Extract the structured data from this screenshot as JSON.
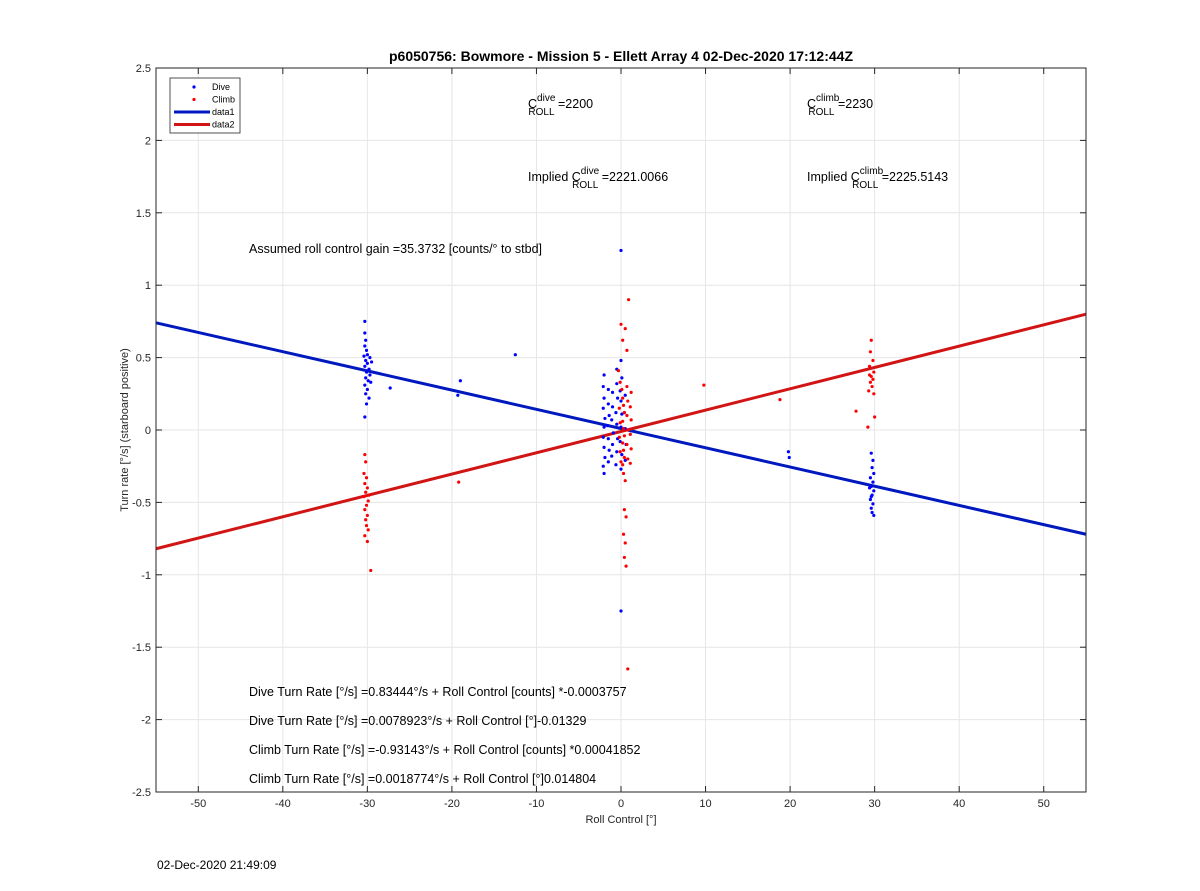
{
  "footer": {
    "timestamp": "02-Dec-2020 21:49:09"
  },
  "chart_data": {
    "type": "scatter",
    "title": "p6050756: Bowmore - Mission 5 - Ellett Array 4 02-Dec-2020 17:12:44Z",
    "xlabel": "Roll Control [°]",
    "ylabel": "Turn rate [°/s] (starboard positive)",
    "xlim": [
      -55,
      55
    ],
    "ylim": [
      -2.5,
      2.5
    ],
    "xticks": [
      -50,
      -40,
      -30,
      -20,
      -10,
      0,
      10,
      20,
      30,
      40,
      50
    ],
    "yticks": [
      -2.5,
      -2,
      -1.5,
      -1,
      -0.5,
      0,
      0.5,
      1,
      1.5,
      2,
      2.5
    ],
    "xtick_labels": [
      "-50",
      "-40",
      "-30",
      "-20",
      "-10",
      "0",
      "10",
      "20",
      "30",
      "40",
      "50"
    ],
    "ytick_labels": [
      "-2.5",
      "-2",
      "-1.5",
      "-1",
      "-0.5",
      "0",
      "0.5",
      "1",
      "1.5",
      "2",
      "2.5"
    ],
    "grid": true,
    "legend_position": "top-left",
    "colors": {
      "dive": "#0000ff",
      "climb": "#ff0000",
      "data1": "#0019bf",
      "data2": "#d11414"
    },
    "legend": [
      {
        "label": "Dive",
        "kind": "marker",
        "color": "#0000ff"
      },
      {
        "label": "Climb",
        "kind": "marker",
        "color": "#ff0000"
      },
      {
        "label": "data1",
        "kind": "line",
        "color": "#0019bf"
      },
      {
        "label": "data2",
        "kind": "line",
        "color": "#d11414"
      }
    ],
    "lines": [
      {
        "name": "data1",
        "color": "#0019bf",
        "x": [
          -55,
          55
        ],
        "y": [
          0.74,
          -0.72
        ]
      },
      {
        "name": "data2",
        "color": "#d11414",
        "x": [
          -55,
          55
        ],
        "y": [
          -0.82,
          0.8
        ]
      }
    ],
    "series": [
      {
        "name": "Dive",
        "color": "#0000ff",
        "points": [
          [
            -30.3,
            0.75
          ],
          [
            -30.3,
            0.67
          ],
          [
            -30.2,
            0.62
          ],
          [
            -30.3,
            0.58
          ],
          [
            -30.1,
            0.55
          ],
          [
            -30.4,
            0.51
          ],
          [
            -30.2,
            0.48
          ],
          [
            -30.0,
            0.46
          ],
          [
            -30.3,
            0.44
          ],
          [
            -29.8,
            0.42
          ],
          [
            -30.1,
            0.4
          ],
          [
            -29.7,
            0.38
          ],
          [
            -30.2,
            0.36
          ],
          [
            -29.9,
            0.34
          ],
          [
            -30.3,
            0.31
          ],
          [
            -29.6,
            0.33
          ],
          [
            -30.0,
            0.28
          ],
          [
            -30.2,
            0.25
          ],
          [
            -29.8,
            0.22
          ],
          [
            -30.1,
            0.18
          ],
          [
            -30.3,
            0.09
          ],
          [
            -29.5,
            0.47
          ],
          [
            -29.7,
            0.5
          ],
          [
            -30.0,
            0.52
          ],
          [
            -27.3,
            0.29
          ],
          [
            -19.0,
            0.34
          ],
          [
            -19.3,
            0.24
          ],
          [
            -12.5,
            0.52
          ],
          [
            0.0,
            1.24
          ],
          [
            0.0,
            -1.25
          ],
          [
            -2.0,
            0.38
          ],
          [
            -2.1,
            0.3
          ],
          [
            -2.0,
            0.22
          ],
          [
            -2.1,
            0.15
          ],
          [
            -1.9,
            0.08
          ],
          [
            -2.0,
            0.02
          ],
          [
            -2.1,
            -0.05
          ],
          [
            -2.0,
            -0.12
          ],
          [
            -1.9,
            -0.19
          ],
          [
            -2.1,
            -0.25
          ],
          [
            -2.0,
            -0.3
          ],
          [
            -1.5,
            0.28
          ],
          [
            -1.5,
            0.18
          ],
          [
            -1.4,
            0.1
          ],
          [
            -1.6,
            0.03
          ],
          [
            -1.5,
            -0.06
          ],
          [
            -1.4,
            -0.14
          ],
          [
            -1.5,
            -0.22
          ],
          [
            -1.0,
            0.26
          ],
          [
            -1.0,
            0.16
          ],
          [
            -1.1,
            0.07
          ],
          [
            -0.9,
            -0.02
          ],
          [
            -1.0,
            -0.1
          ],
          [
            -1.1,
            -0.18
          ],
          [
            -0.5,
            0.42
          ],
          [
            -0.5,
            0.32
          ],
          [
            -0.4,
            0.22
          ],
          [
            -0.6,
            0.12
          ],
          [
            -0.5,
            0.04
          ],
          [
            -0.4,
            -0.06
          ],
          [
            -0.5,
            -0.15
          ],
          [
            -0.6,
            -0.24
          ],
          [
            0.0,
            0.48
          ],
          [
            0.1,
            0.36
          ],
          [
            -0.1,
            0.27
          ],
          [
            0.0,
            0.2
          ],
          [
            0.1,
            0.11
          ],
          [
            0.0,
            0.02
          ],
          [
            -0.1,
            -0.08
          ],
          [
            0.1,
            -0.17
          ],
          [
            0.0,
            -0.27
          ],
          [
            0.5,
            0.24
          ],
          [
            0.4,
            0.12
          ],
          [
            0.5,
            0.01
          ],
          [
            0.6,
            -0.1
          ],
          [
            0.5,
            -0.21
          ],
          [
            19.8,
            -0.15
          ],
          [
            19.9,
            -0.19
          ],
          [
            29.6,
            -0.16
          ],
          [
            29.8,
            -0.21
          ],
          [
            29.7,
            -0.26
          ],
          [
            29.9,
            -0.3
          ],
          [
            29.5,
            -0.33
          ],
          [
            29.8,
            -0.36
          ],
          [
            29.6,
            -0.39
          ],
          [
            29.9,
            -0.42
          ],
          [
            29.7,
            -0.45
          ],
          [
            29.5,
            -0.48
          ],
          [
            29.8,
            -0.51
          ],
          [
            29.6,
            -0.54
          ],
          [
            29.7,
            -0.57
          ],
          [
            29.9,
            -0.59
          ],
          [
            29.4,
            -0.4
          ],
          [
            29.6,
            -0.46
          ]
        ]
      },
      {
        "name": "Climb",
        "color": "#ff0000",
        "points": [
          [
            -30.3,
            -0.17
          ],
          [
            -30.2,
            -0.22
          ],
          [
            -30.4,
            -0.3
          ],
          [
            -30.1,
            -0.33
          ],
          [
            -30.3,
            -0.37
          ],
          [
            -30.0,
            -0.4
          ],
          [
            -30.2,
            -0.43
          ],
          [
            -30.4,
            -0.46
          ],
          [
            -29.9,
            -0.49
          ],
          [
            -30.1,
            -0.52
          ],
          [
            -30.3,
            -0.55
          ],
          [
            -30.0,
            -0.59
          ],
          [
            -30.2,
            -0.62
          ],
          [
            -30.1,
            -0.66
          ],
          [
            -29.9,
            -0.69
          ],
          [
            -30.3,
            -0.73
          ],
          [
            -30.0,
            -0.77
          ],
          [
            -29.6,
            -0.97
          ],
          [
            -29.8,
            -0.45
          ],
          [
            -19.2,
            -0.36
          ],
          [
            0.9,
            0.9
          ],
          [
            0.0,
            0.73
          ],
          [
            0.5,
            0.7
          ],
          [
            0.2,
            0.62
          ],
          [
            0.7,
            0.55
          ],
          [
            0.4,
            -0.55
          ],
          [
            0.6,
            -0.6
          ],
          [
            0.3,
            -0.72
          ],
          [
            0.5,
            -0.78
          ],
          [
            0.4,
            -0.88
          ],
          [
            0.6,
            -0.94
          ],
          [
            0.8,
            -1.65
          ],
          [
            -0.3,
            0.41
          ],
          [
            -0.1,
            0.33
          ],
          [
            0.1,
            0.28
          ],
          [
            0.2,
            0.22
          ],
          [
            0.3,
            0.17
          ],
          [
            0.4,
            0.12
          ],
          [
            0.2,
            0.06
          ],
          [
            0.3,
            0.01
          ],
          [
            0.4,
            -0.04
          ],
          [
            0.2,
            -0.09
          ],
          [
            0.3,
            -0.14
          ],
          [
            0.4,
            -0.19
          ],
          [
            0.2,
            -0.24
          ],
          [
            0.3,
            -0.3
          ],
          [
            0.5,
            -0.35
          ],
          [
            0.7,
            0.3
          ],
          [
            0.8,
            0.2
          ],
          [
            0.7,
            0.1
          ],
          [
            0.8,
            0.0
          ],
          [
            0.7,
            -0.1
          ],
          [
            0.8,
            -0.2
          ],
          [
            1.2,
            0.26
          ],
          [
            1.1,
            0.16
          ],
          [
            1.2,
            0.07
          ],
          [
            1.1,
            -0.03
          ],
          [
            1.2,
            -0.13
          ],
          [
            1.1,
            -0.23
          ],
          [
            -0.2,
            0.15
          ],
          [
            -0.1,
            0.05
          ],
          [
            -0.2,
            -0.05
          ],
          [
            -0.1,
            -0.15
          ],
          [
            0.0,
            -0.22
          ],
          [
            9.8,
            0.31
          ],
          [
            18.8,
            0.21
          ],
          [
            27.8,
            0.13
          ],
          [
            29.6,
            0.62
          ],
          [
            29.5,
            0.54
          ],
          [
            29.8,
            0.48
          ],
          [
            29.4,
            0.44
          ],
          [
            29.9,
            0.4
          ],
          [
            29.6,
            0.37
          ],
          [
            29.8,
            0.35
          ],
          [
            29.5,
            0.33
          ],
          [
            29.7,
            0.3
          ],
          [
            29.3,
            0.27
          ],
          [
            29.9,
            0.25
          ],
          [
            29.2,
            0.02
          ],
          [
            30.0,
            0.09
          ],
          [
            29.4,
            0.38
          ]
        ]
      }
    ],
    "annotations": {
      "c_dive": {
        "prefix": "C",
        "sup": "dive",
        "sub": "ROLL",
        "value": " =2200"
      },
      "c_climb": {
        "prefix": "C",
        "sup": "climb",
        "sub": "ROLL",
        "value": " =2230"
      },
      "implied_dive": {
        "prefix": "Implied C",
        "sup": "dive",
        "sub": "ROLL",
        "value": " =2221.0066"
      },
      "implied_climb": {
        "prefix": "Implied C",
        "sup": "climb",
        "sub": "ROLL",
        "value": " =2225.5143"
      },
      "gain": "Assumed roll control gain =35.3732 [counts/° to stbd]",
      "fit_lines": [
        "Dive Turn Rate [°/s] =0.83444°/s + Roll Control [counts] *-0.0003757",
        "Dive Turn Rate [°/s] =0.0078923°/s + Roll Control [°]-0.01329",
        "Climb Turn Rate [°/s] =-0.93143°/s + Roll Control [counts] *0.00041852",
        "Climb Turn Rate [°/s] =0.0018774°/s + Roll Control [°]0.014804"
      ]
    }
  }
}
